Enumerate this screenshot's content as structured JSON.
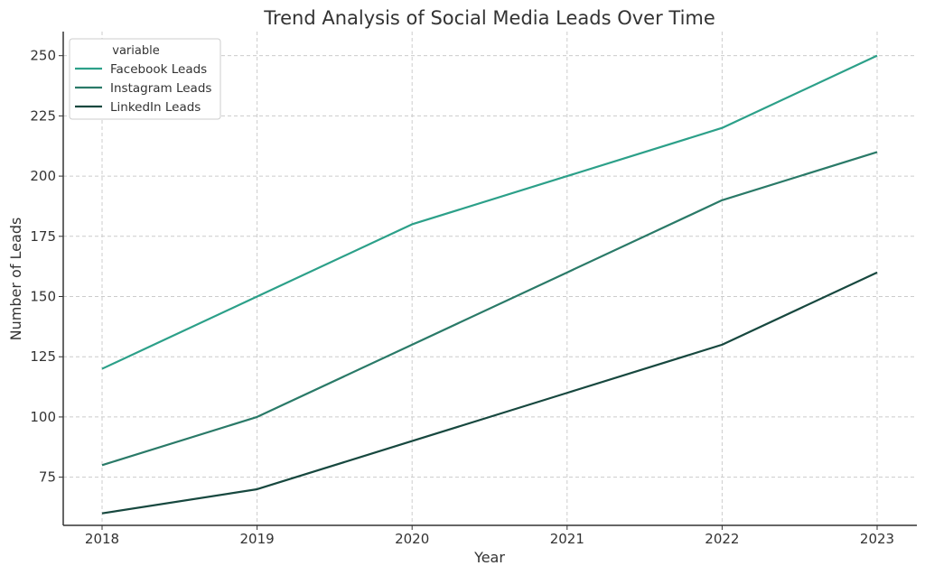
{
  "chart_data": {
    "type": "line",
    "title": "Trend Analysis of Social Media Leads Over Time",
    "xlabel": "Year",
    "ylabel": "Number of Leads",
    "x": [
      2018,
      2019,
      2020,
      2021,
      2022,
      2023
    ],
    "x_tick_labels": [
      "2018",
      "2019",
      "2020",
      "2021",
      "2022",
      "2023"
    ],
    "ylim": [
      55,
      260
    ],
    "y_ticks": [
      75,
      100,
      125,
      150,
      175,
      200,
      225,
      250
    ],
    "y_tick_labels": [
      "75",
      "100",
      "125",
      "150",
      "175",
      "200",
      "225",
      "250"
    ],
    "grid": true,
    "legend": {
      "title": "variable",
      "placement": "top-left"
    },
    "series": [
      {
        "name": "Facebook Leads",
        "color": "#2ca089",
        "values": [
          120,
          150,
          180,
          200,
          220,
          250
        ]
      },
      {
        "name": "Instagram Leads",
        "color": "#2a7a68",
        "values": [
          80,
          100,
          130,
          160,
          190,
          210
        ]
      },
      {
        "name": "LinkedIn Leads",
        "color": "#17483f",
        "values": [
          60,
          70,
          90,
          110,
          130,
          160
        ]
      }
    ]
  }
}
